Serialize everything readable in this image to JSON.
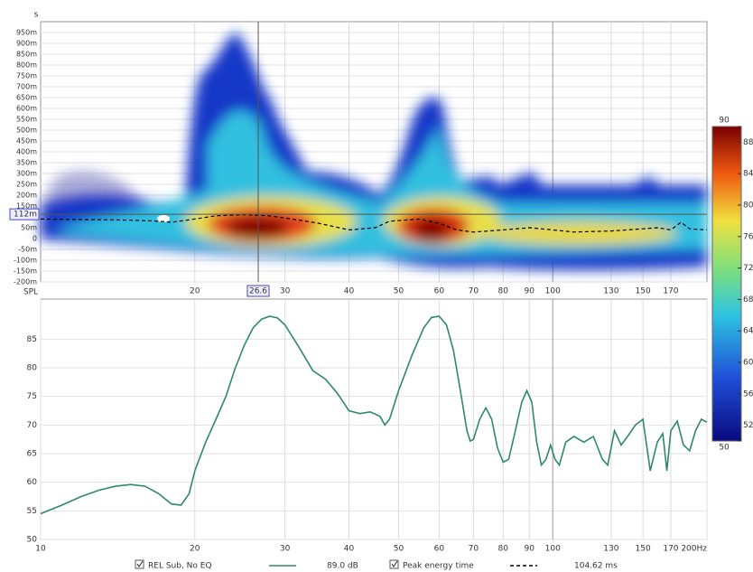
{
  "chart_data": [
    {
      "type": "line",
      "y_label": "s",
      "log_x": true,
      "xlim": [
        10,
        200
      ],
      "ylim": [
        -0.2,
        1.0
      ],
      "xticks": [
        20,
        30,
        40,
        50,
        60,
        70,
        80,
        90,
        100,
        130,
        150,
        170
      ],
      "yticks": [
        {
          "value": -0.2,
          "label": "-200m"
        },
        {
          "value": -0.15,
          "label": "-150m"
        },
        {
          "value": -0.1,
          "label": "-100m"
        },
        {
          "value": -0.05,
          "label": "-50m"
        },
        0,
        {
          "value": 0.05,
          "label": "50m"
        },
        {
          "value": 0.1,
          "label": "100m"
        },
        {
          "value": 0.15,
          "label": "150m"
        },
        {
          "value": 0.2,
          "label": "200m"
        },
        {
          "value": 0.25,
          "label": "250m"
        },
        {
          "value": 0.3,
          "label": "300m"
        },
        {
          "value": 0.35,
          "label": "350m"
        },
        {
          "value": 0.4,
          "label": "400m"
        },
        {
          "value": 0.45,
          "label": "450m"
        },
        {
          "value": 0.5,
          "label": "500m"
        },
        {
          "value": 0.55,
          "label": "550m"
        },
        {
          "value": 0.6,
          "label": "600m"
        },
        {
          "value": 0.65,
          "label": "650m"
        },
        {
          "value": 0.7,
          "label": "700m"
        },
        {
          "value": 0.75,
          "label": "750m"
        },
        {
          "value": 0.8,
          "label": "800m"
        },
        {
          "value": 0.85,
          "label": "850m"
        },
        {
          "value": 0.9,
          "label": "900m"
        },
        {
          "value": 0.95,
          "label": "950m"
        }
      ],
      "cursor_x": {
        "value": 26.6,
        "label": "26.6"
      },
      "cursor_y": {
        "value": 0.112,
        "label": "112m"
      },
      "x": [
        10,
        15,
        17,
        18,
        20,
        22,
        25,
        28,
        32,
        35,
        40,
        45,
        48,
        55,
        60,
        65,
        70,
        75,
        80,
        90,
        100,
        110,
        130,
        150,
        160,
        170,
        178,
        185,
        200
      ],
      "series": [
        {
          "name": "Peak energy time",
          "color": "#000000",
          "dash": true,
          "readout": {
            "value": 0.10462,
            "label": "104.62 ms"
          },
          "values": [
            0.09,
            0.085,
            0.08,
            0.075,
            0.09,
            0.105,
            0.11,
            0.105,
            0.085,
            0.07,
            0.04,
            0.05,
            0.08,
            0.09,
            0.07,
            0.04,
            0.03,
            0.035,
            0.04,
            0.05,
            0.04,
            0.03,
            0.035,
            0.045,
            0.05,
            0.04,
            0.075,
            0.045,
            0.04
          ]
        }
      ],
      "colorbar": {
        "lim": [
          50,
          90
        ],
        "ticks": [
          50,
          52,
          56,
          60,
          64,
          68,
          72,
          76,
          80,
          84,
          88,
          90
        ]
      }
    },
    {
      "type": "line",
      "y_label": "SPL",
      "log_x": true,
      "xlim": [
        10,
        200
      ],
      "ylim": [
        50,
        92
      ],
      "xticks": [
        10,
        20,
        30,
        40,
        50,
        60,
        70,
        80,
        90,
        100,
        130,
        150,
        170,
        {
          "value": 200,
          "label": "200Hz"
        }
      ],
      "yticks": [
        50,
        55,
        60,
        65,
        70,
        75,
        80,
        85
      ],
      "x": [
        10,
        11,
        12,
        13,
        14,
        15,
        16,
        17,
        18,
        18.8,
        19.5,
        20,
        21,
        22,
        23,
        24,
        25,
        26,
        27,
        28,
        29,
        30,
        32,
        34,
        36,
        38,
        40,
        42,
        44,
        46,
        47,
        48,
        50,
        53,
        56,
        58,
        60,
        62,
        64,
        66,
        68,
        69,
        70,
        72,
        74,
        76,
        78,
        80,
        82,
        84,
        87,
        89,
        91,
        93,
        95,
        97,
        99,
        101,
        103,
        106,
        110,
        115,
        120,
        125,
        128,
        132,
        136,
        140,
        145,
        150,
        155,
        160,
        164,
        167,
        170,
        175,
        180,
        185,
        190,
        195,
        200
      ],
      "series": [
        {
          "name": "REL Sub, No EQ",
          "color": "#2e8a66",
          "readout": {
            "value": 89.0,
            "label": "89.0 dB"
          },
          "values": [
            54.5,
            56,
            57.5,
            58.6,
            59.3,
            59.6,
            59.3,
            58,
            56.2,
            56,
            58,
            62,
            67,
            71,
            75,
            80,
            84,
            87,
            88.5,
            89,
            88.7,
            87.5,
            83.5,
            79.5,
            78,
            75.5,
            72.5,
            72,
            72.3,
            71.5,
            70,
            71,
            76,
            82,
            87,
            88.8,
            89,
            87.5,
            83,
            76,
            69,
            67.2,
            67.5,
            71,
            73,
            71,
            66,
            63.5,
            64,
            68,
            74,
            76,
            74,
            67,
            63,
            64,
            66.5,
            64,
            63,
            67,
            68,
            67,
            68,
            64,
            63,
            69,
            66.5,
            68,
            70,
            71,
            62,
            67,
            68.5,
            62,
            69,
            70.7,
            66.5,
            65.5,
            69,
            71,
            70.5
          ]
        }
      ]
    }
  ]
}
